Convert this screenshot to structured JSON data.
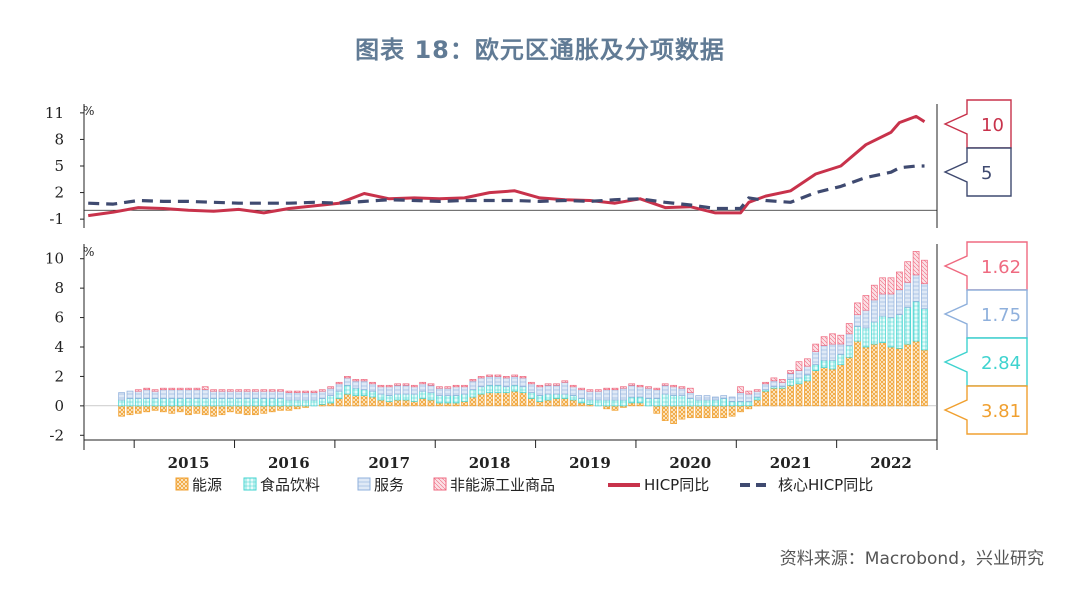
{
  "page": {
    "title": "图表 18：欧元区通胀及分项数据",
    "source": "资料来源：Macrobond，兴业研究"
  },
  "colors": {
    "energy": "#f0a030",
    "food": "#3fd3cf",
    "services": "#8fb0dc",
    "nonenergy": "#ef6a80",
    "hicp": "#c8324b",
    "core": "#3f4a70",
    "axis": "#222222"
  },
  "chart_data": [
    {
      "type": "line",
      "unit": "%",
      "ylim": [
        -2,
        12
      ],
      "yticks": [
        -1,
        2,
        5,
        8,
        11
      ],
      "xlim": [
        "2014-07",
        "2022-08"
      ],
      "series": [
        {
          "name": "HICP同比",
          "points": [
            [
              "2014-07",
              -0.6
            ],
            [
              "2014-10",
              -0.2
            ],
            [
              "2015-01",
              0.3
            ],
            [
              "2015-04",
              0.2
            ],
            [
              "2015-07",
              0.0
            ],
            [
              "2015-10",
              -0.1
            ],
            [
              "2016-01",
              0.1
            ],
            [
              "2016-04",
              -0.3
            ],
            [
              "2016-07",
              0.2
            ],
            [
              "2016-10",
              0.5
            ],
            [
              "2017-01",
              0.8
            ],
            [
              "2017-04",
              1.9
            ],
            [
              "2017-07",
              1.3
            ],
            [
              "2017-10",
              1.4
            ],
            [
              "2018-01",
              1.3
            ],
            [
              "2018-04",
              1.4
            ],
            [
              "2018-07",
              2.0
            ],
            [
              "2018-10",
              2.2
            ],
            [
              "2019-01",
              1.4
            ],
            [
              "2019-04",
              1.2
            ],
            [
              "2019-07",
              1.1
            ],
            [
              "2019-10",
              0.8
            ],
            [
              "2020-01",
              1.3
            ],
            [
              "2020-04",
              0.3
            ],
            [
              "2020-07",
              0.4
            ],
            [
              "2020-10",
              -0.3
            ],
            [
              "2021-01",
              -0.3
            ],
            [
              "2021-02",
              0.9
            ],
            [
              "2021-04",
              1.6
            ],
            [
              "2021-07",
              2.2
            ],
            [
              "2021-10",
              4.1
            ],
            [
              "2022-01",
              5.0
            ],
            [
              "2022-04",
              7.4
            ],
            [
              "2022-07",
              8.8
            ],
            [
              "2022-08",
              9.9
            ],
            [
              "2022-10",
              10.6
            ],
            [
              "2022-11",
              10.0
            ]
          ]
        },
        {
          "name": "核心HICP同比",
          "points": [
            [
              "2014-07",
              0.8
            ],
            [
              "2014-10",
              0.7
            ],
            [
              "2015-01",
              1.1
            ],
            [
              "2015-04",
              1.0
            ],
            [
              "2015-07",
              1.0
            ],
            [
              "2015-10",
              0.9
            ],
            [
              "2016-01",
              0.8
            ],
            [
              "2016-04",
              0.8
            ],
            [
              "2016-07",
              0.8
            ],
            [
              "2016-10",
              0.9
            ],
            [
              "2017-01",
              0.8
            ],
            [
              "2017-04",
              1.0
            ],
            [
              "2017-07",
              1.2
            ],
            [
              "2017-10",
              1.1
            ],
            [
              "2018-01",
              1.0
            ],
            [
              "2018-04",
              1.1
            ],
            [
              "2018-07",
              1.1
            ],
            [
              "2018-10",
              1.1
            ],
            [
              "2019-01",
              1.0
            ],
            [
              "2019-04",
              1.1
            ],
            [
              "2019-07",
              1.0
            ],
            [
              "2019-10",
              1.2
            ],
            [
              "2020-01",
              1.3
            ],
            [
              "2020-04",
              0.9
            ],
            [
              "2020-07",
              0.6
            ],
            [
              "2020-10",
              0.2
            ],
            [
              "2021-01",
              0.2
            ],
            [
              "2021-02",
              1.4
            ],
            [
              "2021-04",
              1.1
            ],
            [
              "2021-07",
              0.9
            ],
            [
              "2021-10",
              2.0
            ],
            [
              "2022-01",
              2.7
            ],
            [
              "2022-04",
              3.7
            ],
            [
              "2022-07",
              4.3
            ],
            [
              "2022-08",
              4.8
            ],
            [
              "2022-10",
              5.0
            ],
            [
              "2022-11",
              5.0
            ]
          ]
        }
      ],
      "end_labels": [
        {
          "series": "HICP同比",
          "text": "10"
        },
        {
          "series": "核心HICP同比",
          "text": "5"
        }
      ]
    },
    {
      "type": "bar",
      "stacked": true,
      "unit": "%",
      "ylim": [
        -3,
        11
      ],
      "yticks": [
        -2,
        0,
        2,
        4,
        6,
        8,
        10
      ],
      "xlim": [
        "2014-07",
        "2022-08"
      ],
      "x_tick_labels": [
        "2015",
        "2016",
        "2017",
        "2018",
        "2019",
        "2020",
        "2021",
        "2022"
      ],
      "series_names": [
        "能源",
        "食品饮料",
        "服务",
        "非能源工业商品"
      ],
      "bars": [
        [
          "2014-11",
          -0.7,
          0.4,
          0.5,
          0.0
        ],
        [
          "2014-12",
          -0.6,
          0.5,
          0.5,
          0.0
        ],
        [
          "2015-01",
          -0.5,
          0.5,
          0.5,
          0.1
        ],
        [
          "2015-02",
          -0.4,
          0.5,
          0.6,
          0.1
        ],
        [
          "2015-03",
          -0.3,
          0.5,
          0.5,
          0.1
        ],
        [
          "2015-04",
          -0.4,
          0.5,
          0.6,
          0.1
        ],
        [
          "2015-05",
          -0.5,
          0.5,
          0.6,
          0.1
        ],
        [
          "2015-06",
          -0.4,
          0.5,
          0.6,
          0.1
        ],
        [
          "2015-07",
          -0.6,
          0.5,
          0.6,
          0.1
        ],
        [
          "2015-08",
          -0.5,
          0.5,
          0.6,
          0.1
        ],
        [
          "2015-09",
          -0.6,
          0.5,
          0.6,
          0.2
        ],
        [
          "2015-10",
          -0.7,
          0.5,
          0.5,
          0.1
        ],
        [
          "2015-11",
          -0.6,
          0.5,
          0.5,
          0.1
        ],
        [
          "2015-12",
          -0.4,
          0.5,
          0.5,
          0.1
        ],
        [
          "2016-01",
          -0.5,
          0.5,
          0.5,
          0.1
        ],
        [
          "2016-02",
          -0.6,
          0.5,
          0.5,
          0.1
        ],
        [
          "2016-03",
          -0.6,
          0.5,
          0.5,
          0.1
        ],
        [
          "2016-04",
          -0.5,
          0.5,
          0.5,
          0.1
        ],
        [
          "2016-05",
          -0.4,
          0.5,
          0.5,
          0.1
        ],
        [
          "2016-06",
          -0.3,
          0.5,
          0.5,
          0.1
        ],
        [
          "2016-07",
          -0.3,
          0.4,
          0.5,
          0.1
        ],
        [
          "2016-08",
          -0.2,
          0.4,
          0.5,
          0.1
        ],
        [
          "2016-09",
          -0.1,
          0.4,
          0.5,
          0.1
        ],
        [
          "2016-10",
          0.0,
          0.4,
          0.5,
          0.1
        ],
        [
          "2016-11",
          0.1,
          0.4,
          0.5,
          0.1
        ],
        [
          "2016-12",
          0.2,
          0.5,
          0.5,
          0.1
        ],
        [
          "2017-01",
          0.5,
          0.5,
          0.5,
          0.1
        ],
        [
          "2017-02",
          0.8,
          0.6,
          0.5,
          0.1
        ],
        [
          "2017-03",
          0.7,
          0.5,
          0.5,
          0.1
        ],
        [
          "2017-04",
          0.7,
          0.4,
          0.6,
          0.1
        ],
        [
          "2017-05",
          0.6,
          0.4,
          0.5,
          0.1
        ],
        [
          "2017-06",
          0.4,
          0.4,
          0.5,
          0.1
        ],
        [
          "2017-07",
          0.3,
          0.4,
          0.6,
          0.1
        ],
        [
          "2017-08",
          0.4,
          0.4,
          0.6,
          0.1
        ],
        [
          "2017-09",
          0.4,
          0.4,
          0.6,
          0.1
        ],
        [
          "2017-10",
          0.3,
          0.5,
          0.5,
          0.1
        ],
        [
          "2017-11",
          0.5,
          0.5,
          0.5,
          0.1
        ],
        [
          "2017-12",
          0.4,
          0.5,
          0.5,
          0.1
        ],
        [
          "2018-01",
          0.2,
          0.5,
          0.5,
          0.1
        ],
        [
          "2018-02",
          0.2,
          0.5,
          0.5,
          0.1
        ],
        [
          "2018-03",
          0.2,
          0.5,
          0.6,
          0.1
        ],
        [
          "2018-04",
          0.3,
          0.5,
          0.5,
          0.1
        ],
        [
          "2018-05",
          0.6,
          0.5,
          0.6,
          0.1
        ],
        [
          "2018-06",
          0.8,
          0.5,
          0.6,
          0.1
        ],
        [
          "2018-07",
          0.9,
          0.5,
          0.6,
          0.1
        ],
        [
          "2018-08",
          0.9,
          0.5,
          0.6,
          0.1
        ],
        [
          "2018-09",
          0.9,
          0.4,
          0.6,
          0.1
        ],
        [
          "2018-10",
          1.0,
          0.4,
          0.6,
          0.1
        ],
        [
          "2018-11",
          0.9,
          0.4,
          0.6,
          0.1
        ],
        [
          "2018-12",
          0.5,
          0.4,
          0.6,
          0.1
        ],
        [
          "2019-01",
          0.3,
          0.4,
          0.6,
          0.1
        ],
        [
          "2019-02",
          0.4,
          0.4,
          0.6,
          0.1
        ],
        [
          "2019-03",
          0.5,
          0.3,
          0.6,
          0.1
        ],
        [
          "2019-04",
          0.5,
          0.3,
          0.8,
          0.1
        ],
        [
          "2019-05",
          0.4,
          0.3,
          0.6,
          0.1
        ],
        [
          "2019-06",
          0.2,
          0.3,
          0.6,
          0.1
        ],
        [
          "2019-07",
          0.1,
          0.3,
          0.6,
          0.1
        ],
        [
          "2019-08",
          0.0,
          0.4,
          0.6,
          0.1
        ],
        [
          "2019-09",
          -0.2,
          0.4,
          0.7,
          0.1
        ],
        [
          "2019-10",
          -0.3,
          0.4,
          0.7,
          0.1
        ],
        [
          "2019-11",
          -0.1,
          0.4,
          0.8,
          0.1
        ],
        [
          "2019-12",
          0.2,
          0.4,
          0.8,
          0.1
        ],
        [
          "2020-01",
          0.2,
          0.4,
          0.7,
          0.1
        ],
        [
          "2020-02",
          0.0,
          0.5,
          0.7,
          0.1
        ],
        [
          "2020-03",
          -0.5,
          0.5,
          0.6,
          0.1
        ],
        [
          "2020-04",
          -1.0,
          0.8,
          0.6,
          0.1
        ],
        [
          "2020-05",
          -1.2,
          0.7,
          0.6,
          0.1
        ],
        [
          "2020-06",
          -0.9,
          0.7,
          0.5,
          0.1
        ],
        [
          "2020-07",
          -0.8,
          0.5,
          0.4,
          0.3
        ],
        [
          "2020-08",
          -0.8,
          0.4,
          0.3,
          0.0
        ],
        [
          "2020-09",
          -0.8,
          0.4,
          0.3,
          0.0
        ],
        [
          "2020-10",
          -0.8,
          0.4,
          0.2,
          0.0
        ],
        [
          "2020-11",
          -0.8,
          0.5,
          0.2,
          0.0
        ],
        [
          "2020-12",
          -0.7,
          0.3,
          0.3,
          0.0
        ],
        [
          "2021-01",
          -0.4,
          0.3,
          0.6,
          0.4
        ],
        [
          "2021-02",
          -0.2,
          0.3,
          0.5,
          0.2
        ],
        [
          "2021-03",
          0.4,
          0.2,
          0.4,
          0.1
        ],
        [
          "2021-04",
          1.0,
          0.1,
          0.4,
          0.1
        ],
        [
          "2021-05",
          1.2,
          0.1,
          0.4,
          0.2
        ],
        [
          "2021-06",
          1.2,
          0.1,
          0.3,
          0.2
        ],
        [
          "2021-07",
          1.4,
          0.4,
          0.4,
          0.2
        ],
        [
          "2021-08",
          1.5,
          0.4,
          0.5,
          0.6
        ],
        [
          "2021-09",
          1.7,
          0.4,
          0.6,
          0.5
        ],
        [
          "2021-10",
          2.4,
          0.4,
          0.9,
          0.5
        ],
        [
          "2021-11",
          2.6,
          0.5,
          1.0,
          0.6
        ],
        [
          "2021-12",
          2.5,
          0.6,
          1.1,
          0.7
        ],
        [
          "2022-01",
          2.8,
          0.7,
          0.7,
          0.6
        ],
        [
          "2022-02",
          3.3,
          0.8,
          0.8,
          0.7
        ],
        [
          "2022-03",
          4.4,
          1.0,
          0.8,
          0.8
        ],
        [
          "2022-04",
          4.0,
          1.3,
          1.2,
          1.0
        ],
        [
          "2022-05",
          4.2,
          1.5,
          1.5,
          1.0
        ],
        [
          "2022-06",
          4.3,
          1.8,
          1.5,
          1.1
        ],
        [
          "2022-07",
          4.0,
          2.0,
          1.6,
          1.1
        ],
        [
          "2022-08",
          3.9,
          2.3,
          1.7,
          1.2
        ],
        [
          "2022-09",
          4.2,
          2.5,
          1.7,
          1.4
        ],
        [
          "2022-10",
          4.4,
          2.7,
          1.8,
          1.6
        ],
        [
          "2022-11",
          3.8,
          2.8,
          1.7,
          1.6
        ]
      ],
      "end_labels": [
        {
          "series": "非能源工业商品",
          "text": "1.62"
        },
        {
          "series": "服务",
          "text": "1.75"
        },
        {
          "series": "食品饮料",
          "text": "2.84"
        },
        {
          "series": "能源",
          "text": "3.81"
        }
      ]
    }
  ],
  "legend": [
    "能源",
    "食品饮料",
    "服务",
    "非能源工业商品",
    "HICP同比",
    "核心HICP同比"
  ]
}
